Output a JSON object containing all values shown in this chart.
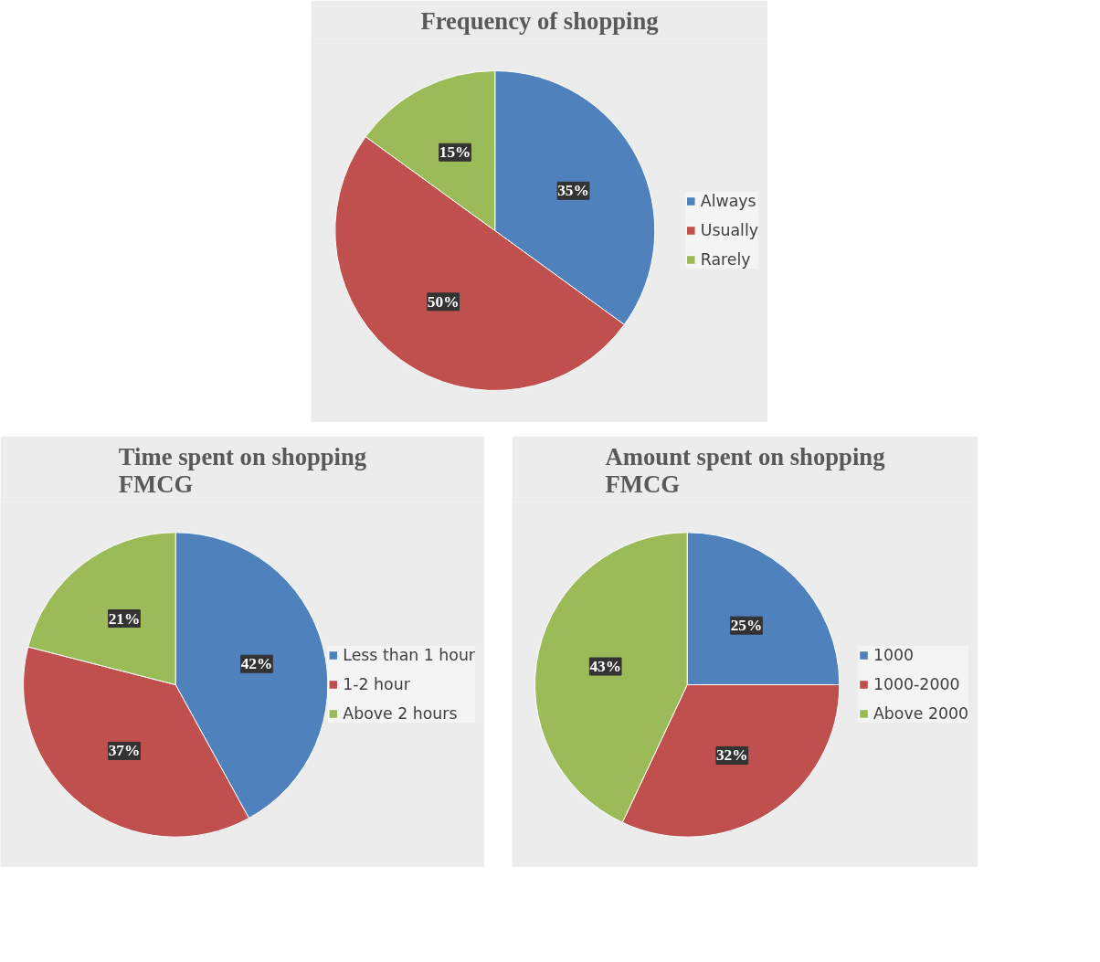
{
  "chart_data": [
    {
      "type": "pie",
      "title": "Frequency of shopping",
      "categories": [
        "Always",
        "Usually",
        "Rarely"
      ],
      "values": [
        35,
        50,
        15
      ],
      "colors": [
        "#4f81bd",
        "#c0504d",
        "#9bbb59"
      ],
      "value_labels": [
        "35%",
        "50%",
        "15%"
      ],
      "legend": "right"
    },
    {
      "type": "pie",
      "title": "Time spent on shopping FMCG",
      "categories": [
        "Less than 1 hour",
        "1-2 hour",
        "Above 2 hours"
      ],
      "values": [
        42,
        37,
        21
      ],
      "colors": [
        "#4f81bd",
        "#c0504d",
        "#9bbb59"
      ],
      "value_labels": [
        "42%",
        "37%",
        "21%"
      ],
      "legend": "right"
    },
    {
      "type": "pie",
      "title": "Amount spent on shopping FMCG",
      "categories": [
        "1000",
        "1000-2000",
        "Above 2000"
      ],
      "values": [
        25,
        32,
        43
      ],
      "colors": [
        "#4f81bd",
        "#c0504d",
        "#9bbb59"
      ],
      "value_labels": [
        "25%",
        "32%",
        "43%"
      ],
      "legend": "right"
    }
  ]
}
